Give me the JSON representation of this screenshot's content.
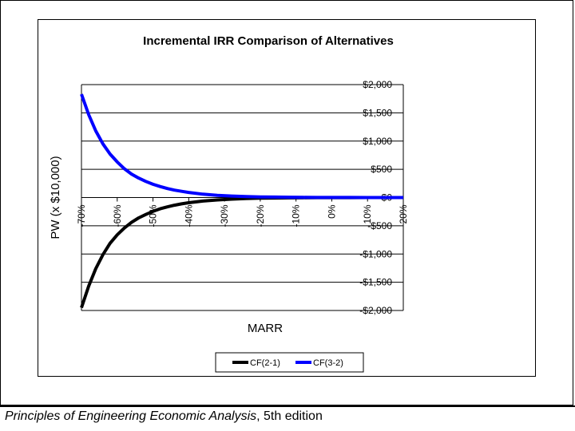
{
  "chart_data": {
    "type": "line",
    "title": "Incremental IRR Comparison of Alternatives",
    "xlabel": "MARR",
    "ylabel": "PW (x $10,000)",
    "x_ticks": [
      "-70%",
      "-60%",
      "-50%",
      "-40%",
      "-30%",
      "-20%",
      "-10%",
      "0%",
      "10%",
      "20%"
    ],
    "x_tick_values": [
      -70,
      -60,
      -50,
      -40,
      -30,
      -20,
      -10,
      0,
      10,
      20
    ],
    "y_ticks": [
      "$2,000",
      "$1,500",
      "$1,000",
      "$500",
      "$0",
      "-$500",
      "-$1,000",
      "-$1,500",
      "-$2,000"
    ],
    "y_tick_values": [
      2000,
      1500,
      1000,
      500,
      0,
      -500,
      -1000,
      -1500,
      -2000
    ],
    "xlim": [
      -70,
      20
    ],
    "ylim": [
      -2000,
      2000
    ],
    "grid": "horizontal",
    "legend": "bottom",
    "series": [
      {
        "name": "CF(2-1)",
        "color": "#000000",
        "x": [
          -70,
          -68,
          -66,
          -64,
          -62,
          -60,
          -58,
          -56,
          -54,
          -52,
          -50,
          -48,
          -46,
          -44,
          -42,
          -40,
          -36,
          -32,
          -28,
          -24,
          -20,
          -16,
          -12,
          -8,
          -4,
          0,
          5,
          10,
          15,
          20
        ],
        "y": [
          -1950,
          -1570,
          -1260,
          -1010,
          -810,
          -660,
          -540,
          -440,
          -360,
          -300,
          -245,
          -200,
          -165,
          -135,
          -112,
          -92,
          -62,
          -42,
          -28,
          -18,
          -12,
          -8,
          -5,
          -3,
          -2,
          -1,
          -1,
          0,
          0,
          0
        ]
      },
      {
        "name": "CF(3-2)",
        "color": "#0000ff",
        "x": [
          -70,
          -68,
          -66,
          -64,
          -62,
          -60,
          -58,
          -56,
          -54,
          -52,
          -50,
          -48,
          -46,
          -44,
          -42,
          -40,
          -36,
          -32,
          -28,
          -24,
          -20,
          -16,
          -12,
          -8,
          -4,
          0,
          5,
          10,
          15,
          20
        ],
        "y": [
          1830,
          1470,
          1180,
          950,
          770,
          630,
          510,
          415,
          345,
          285,
          235,
          195,
          160,
          132,
          110,
          90,
          60,
          40,
          27,
          18,
          12,
          8,
          5,
          3,
          2,
          1,
          1,
          0,
          0,
          0
        ]
      }
    ]
  },
  "footer": {
    "title": "Principles of Engineering Economic Analysis",
    "edition": ", 5th edition"
  }
}
